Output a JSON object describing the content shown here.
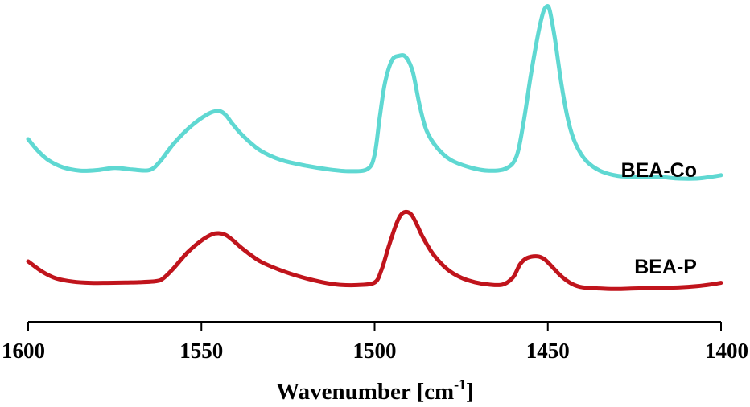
{
  "chart_data": {
    "type": "line",
    "title": "",
    "xlabel": "Wavenumber [cm",
    "xlabel_sup": "-1",
    "xlabel_end": "]",
    "ylabel": "",
    "xlim": [
      1600,
      1400
    ],
    "x_reversed": true,
    "x_ticks": [
      1600,
      1550,
      1500,
      1450,
      1400
    ],
    "grid": false,
    "legend": "none",
    "series": [
      {
        "name": "BEA-Co",
        "color": "#5fd8d2",
        "label": "BEA-Co",
        "x": [
          1600,
          1597,
          1594,
          1590,
          1585,
          1580,
          1575,
          1570,
          1565,
          1562,
          1558,
          1553,
          1548,
          1545,
          1543,
          1541,
          1538,
          1533,
          1527,
          1520,
          1513,
          1507,
          1502,
          1500,
          1498.5,
          1497,
          1495,
          1493,
          1491,
          1489,
          1487,
          1485,
          1482,
          1478,
          1472,
          1467,
          1462,
          1459,
          1457,
          1455,
          1453,
          1451.5,
          1450.5,
          1449.5,
          1448,
          1446,
          1444,
          1442,
          1439,
          1435,
          1430,
          1424,
          1418,
          1412,
          1407,
          1403,
          1400
        ],
        "y": [
          0.0,
          -0.22,
          -0.38,
          -0.5,
          -0.56,
          -0.55,
          -0.51,
          -0.54,
          -0.55,
          -0.4,
          -0.08,
          0.23,
          0.45,
          0.5,
          0.43,
          0.27,
          0.06,
          -0.2,
          -0.37,
          -0.47,
          -0.54,
          -0.57,
          -0.53,
          -0.28,
          0.4,
          1.0,
          1.4,
          1.48,
          1.46,
          1.2,
          0.6,
          0.15,
          -0.15,
          -0.37,
          -0.51,
          -0.56,
          -0.52,
          -0.3,
          0.3,
          1.1,
          1.8,
          2.22,
          2.35,
          2.3,
          1.8,
          0.95,
          0.3,
          -0.08,
          -0.38,
          -0.56,
          -0.65,
          -0.67,
          -0.67,
          -0.7,
          -0.7,
          -0.67,
          -0.64
        ]
      },
      {
        "name": "BEA-P",
        "color": "#c0141c",
        "label": "BEA-P",
        "x": [
          1600,
          1596,
          1592,
          1587,
          1582,
          1577,
          1572,
          1568,
          1563,
          1561,
          1558,
          1554,
          1550,
          1547,
          1545,
          1543,
          1541,
          1538,
          1533,
          1527,
          1521,
          1515,
          1510,
          1505,
          1500,
          1498,
          1496,
          1494,
          1492.5,
          1491,
          1489.5,
          1488,
          1486,
          1483,
          1479,
          1475,
          1471,
          1467,
          1463,
          1460,
          1458,
          1456,
          1453,
          1451,
          1449,
          1446,
          1443,
          1440,
          1435,
          1430,
          1425,
          1418,
          1412,
          1407,
          1403,
          1400
        ],
        "y": [
          0.0,
          -0.18,
          -0.3,
          -0.36,
          -0.38,
          -0.38,
          -0.375,
          -0.37,
          -0.35,
          -0.3,
          -0.12,
          0.16,
          0.37,
          0.48,
          0.5,
          0.47,
          0.38,
          0.22,
          0.0,
          -0.16,
          -0.28,
          -0.37,
          -0.415,
          -0.42,
          -0.375,
          -0.15,
          0.25,
          0.62,
          0.82,
          0.88,
          0.84,
          0.68,
          0.42,
          0.12,
          -0.14,
          -0.29,
          -0.37,
          -0.41,
          -0.41,
          -0.28,
          -0.05,
          0.06,
          0.09,
          0.04,
          -0.08,
          -0.27,
          -0.4,
          -0.46,
          -0.48,
          -0.49,
          -0.48,
          -0.47,
          -0.46,
          -0.44,
          -0.41,
          -0.38
        ]
      }
    ]
  }
}
